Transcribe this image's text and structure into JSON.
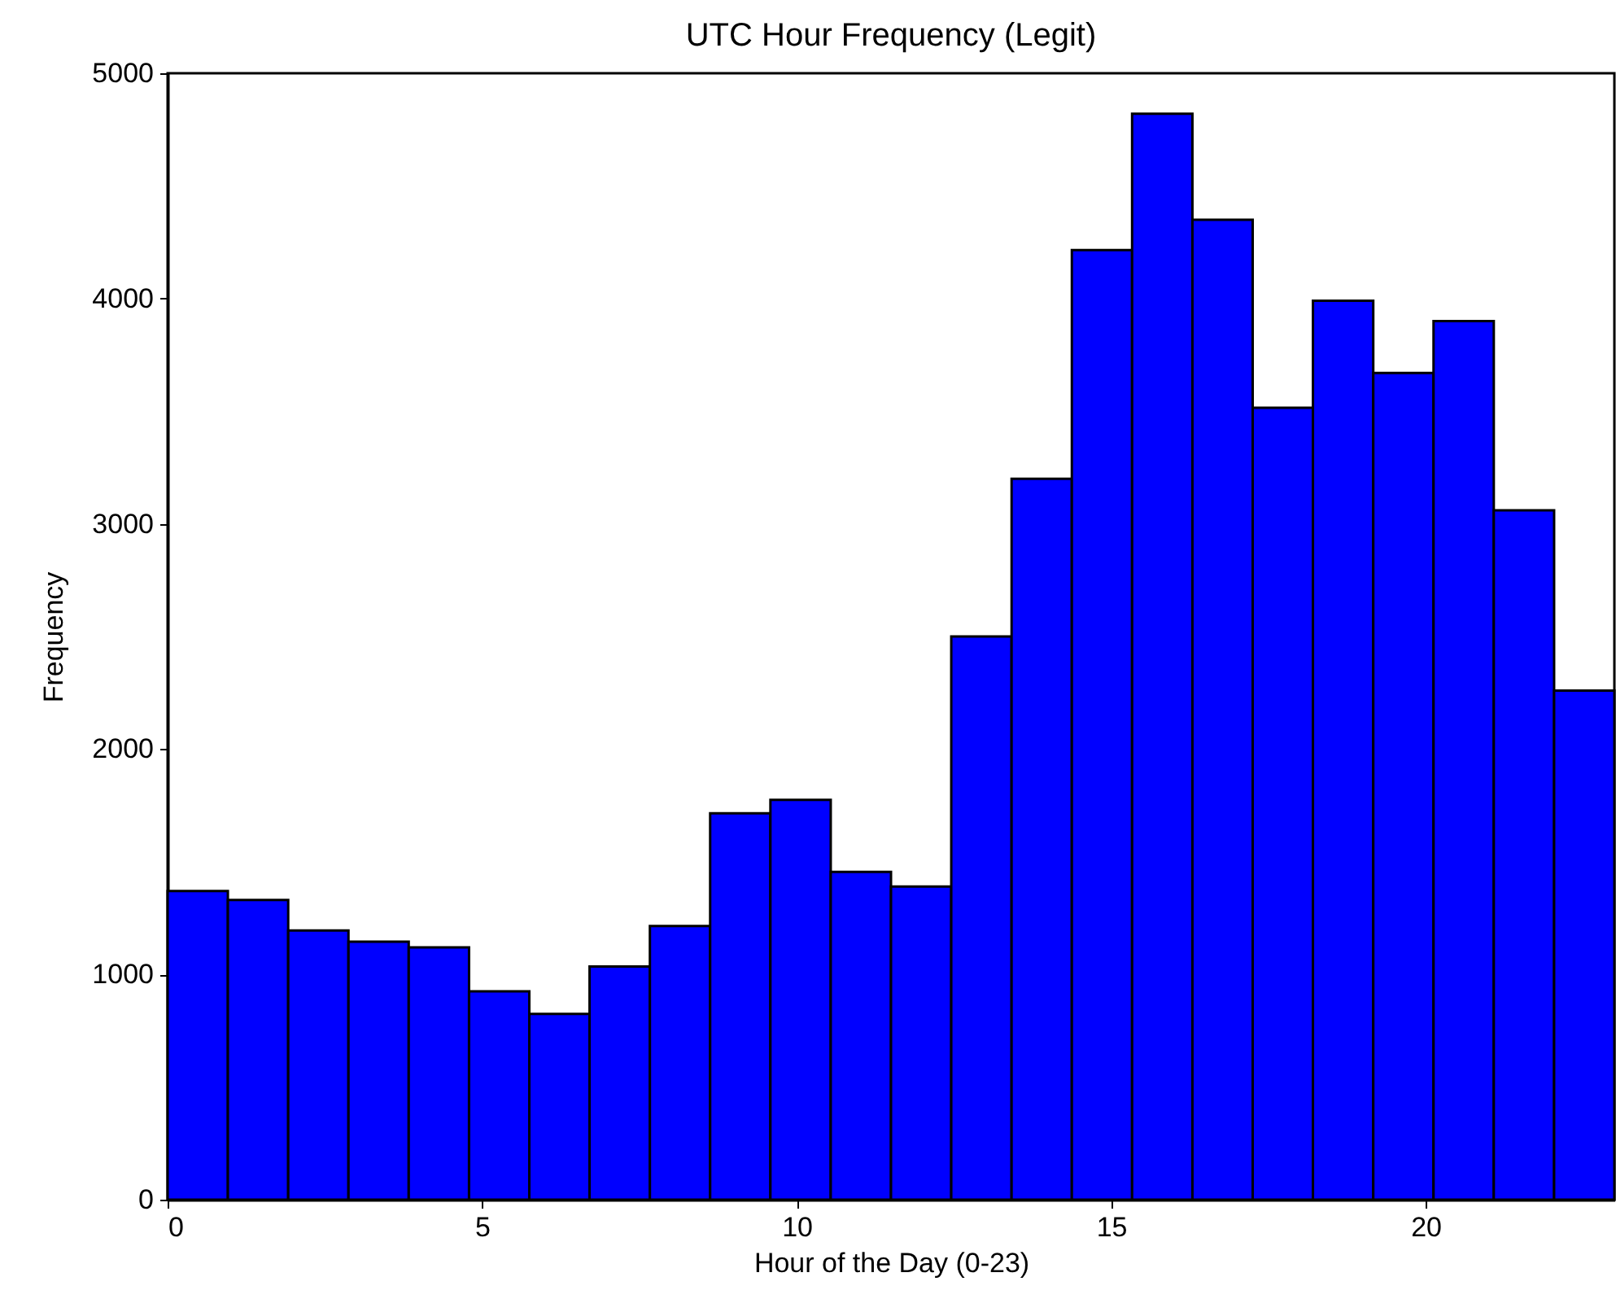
{
  "chart_data": {
    "type": "histogram",
    "title": "UTC Hour Frequency (Legit)",
    "xlabel": "Hour of the Day (0-23)",
    "ylabel": "Frequency",
    "bins": [
      0,
      0.958,
      1.917,
      2.875,
      3.833,
      4.792,
      5.75,
      6.708,
      7.667,
      8.625,
      9.583,
      10.542,
      11.5,
      12.458,
      13.417,
      14.375,
      15.333,
      16.292,
      17.25,
      18.208,
      19.167,
      20.125,
      21.083,
      22.042,
      23
    ],
    "values": [
      1370,
      1330,
      1195,
      1145,
      1120,
      925,
      825,
      1035,
      1215,
      1715,
      1775,
      1455,
      1390,
      2500,
      3200,
      4215,
      4820,
      4350,
      3515,
      3990,
      3670,
      3900,
      3060,
      2260
    ],
    "color": "#0000ff",
    "xlim": [
      0,
      23
    ],
    "xticks": [
      0,
      5,
      10,
      15,
      20
    ],
    "ylim": [
      0,
      5000
    ],
    "yticks": [
      0,
      1000,
      2000,
      3000,
      4000,
      5000
    ],
    "grid": false
  }
}
